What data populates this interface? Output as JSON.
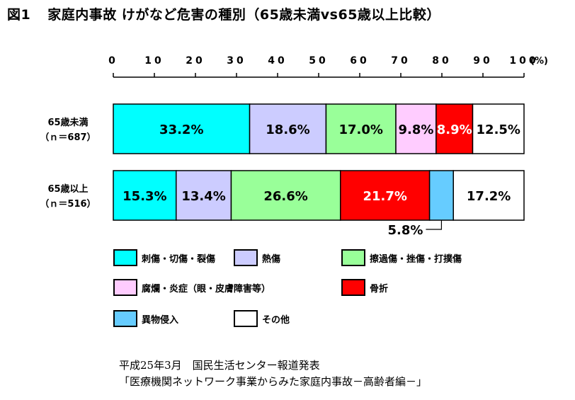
{
  "title": {
    "figure_label": "図1",
    "text": "家庭内事故 けがなど危害の種別（65歳未満vs65歳以上比較）"
  },
  "chart_data": {
    "type": "bar",
    "orientation": "horizontal",
    "stacked": true,
    "x_ticks": [
      "0",
      "10",
      "20",
      "30",
      "40",
      "50",
      "60",
      "70",
      "80",
      "90",
      "100"
    ],
    "x_unit": "(%)",
    "xlim": [
      0,
      100
    ],
    "categories": [
      {
        "label": "65歳未満",
        "n": "（ｎ＝687）"
      },
      {
        "label": "65歳以上",
        "n": "（ｎ＝516）"
      }
    ],
    "series": [
      {
        "name": "刺傷・切傷・裂傷",
        "color": "#00FFFF",
        "values": [
          33.2,
          15.3
        ],
        "labels": [
          "33.2%",
          "15.3%"
        ]
      },
      {
        "name": "熱傷",
        "color": "#CCCCFF",
        "values": [
          18.6,
          13.4
        ],
        "labels": [
          "18.6%",
          "13.4%"
        ]
      },
      {
        "name": "擦過傷・挫傷・打撲傷",
        "color": "#99FF99",
        "values": [
          17.0,
          26.6
        ],
        "labels": [
          "17.0%",
          "26.6%"
        ]
      },
      {
        "name": "腐爛・炎症（眼・皮膚障害等）",
        "color": "#FFCCFF",
        "values": [
          9.8,
          0
        ],
        "labels": [
          "9.8%",
          ""
        ]
      },
      {
        "name": "骨折",
        "color": "#FF0000",
        "values": [
          8.9,
          21.7
        ],
        "labels": [
          "8.9%",
          "21.7%"
        ],
        "label_color": "#FFFFFF"
      },
      {
        "name": "異物侵入",
        "color": "#66CCFF",
        "values": [
          0,
          5.8
        ],
        "labels": [
          "",
          ""
        ]
      },
      {
        "name": "その他",
        "color": "#FFFFFF",
        "values": [
          12.5,
          17.2
        ],
        "labels": [
          "12.5%",
          "17.2%"
        ]
      }
    ],
    "annotations": [
      {
        "text": "5.8%",
        "category_index": 1,
        "series_index": 5
      }
    ],
    "legend_placement": "bottom"
  },
  "footer": {
    "line1": "平成25年3月　国民生活センター報道発表",
    "line2": "「医療機関ネットワーク事業からみた家庭内事故－高齢者編－」"
  }
}
